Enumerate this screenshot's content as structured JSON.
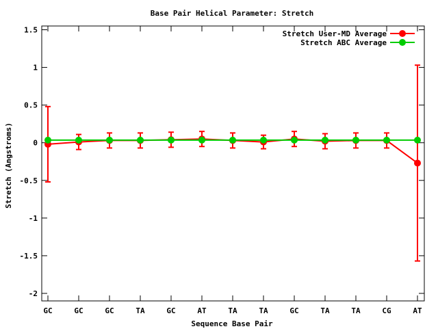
{
  "chart_data": {
    "type": "line",
    "title": "Base Pair Helical Parameter: Stretch",
    "xlabel": "Sequence Base Pair",
    "ylabel": "Stretch (Angstroms)",
    "categories": [
      "GC",
      "GC",
      "GC",
      "TA",
      "GC",
      "AT",
      "TA",
      "TA",
      "GC",
      "TA",
      "TA",
      "CG",
      "AT"
    ],
    "ylim": [
      -2.1,
      1.55
    ],
    "yticks": [
      {
        "value": 1.5,
        "label": "1.5"
      },
      {
        "value": 1,
        "label": "1"
      },
      {
        "value": 0.5,
        "label": "0.5"
      },
      {
        "value": 0,
        "label": "0"
      },
      {
        "value": -0.5,
        "label": "-0.5"
      },
      {
        "value": -1,
        "label": "-1"
      },
      {
        "value": -1.5,
        "label": "-1.5"
      },
      {
        "value": -2,
        "label": "-2"
      }
    ],
    "grid": false,
    "legend_position": "top-right",
    "series": [
      {
        "name": "Stretch User-MD Average",
        "color": "#ff0000",
        "values": [
          -0.02,
          0.01,
          0.03,
          0.03,
          0.04,
          0.05,
          0.03,
          0.01,
          0.05,
          0.02,
          0.03,
          0.03,
          -0.27
        ],
        "errors": [
          0.5,
          0.1,
          0.1,
          0.1,
          0.1,
          0.1,
          0.1,
          0.09,
          0.1,
          0.1,
          0.1,
          0.1,
          1.3
        ]
      },
      {
        "name": "Stretch ABC Average",
        "color": "#00cc00",
        "values": [
          0.035,
          0.035,
          0.035,
          0.035,
          0.035,
          0.035,
          0.035,
          0.035,
          0.035,
          0.035,
          0.035,
          0.035,
          0.035
        ]
      }
    ]
  }
}
